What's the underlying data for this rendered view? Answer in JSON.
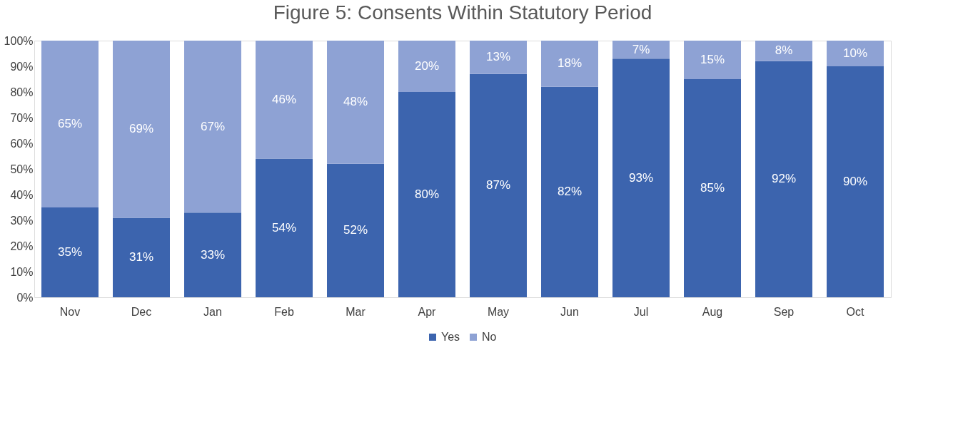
{
  "chart_data": {
    "type": "bar",
    "title": "Figure 5: Consents Within Statutory Period",
    "categories": [
      "Nov",
      "Dec",
      "Jan",
      "Feb",
      "Mar",
      "Apr",
      "May",
      "Jun",
      "Jul",
      "Aug",
      "Sep",
      "Oct"
    ],
    "stacked": true,
    "series": [
      {
        "name": "Yes",
        "color": "#3c64ae",
        "values": [
          35,
          31,
          33,
          54,
          52,
          80,
          87,
          82,
          93,
          85,
          92,
          90
        ],
        "value_labels": [
          "35%",
          "31%",
          "33%",
          "54%",
          "52%",
          "80%",
          "87%",
          "82%",
          "93%",
          "85%",
          "92%",
          "90%"
        ]
      },
      {
        "name": "No",
        "color": "#8ea2d4",
        "values": [
          65,
          69,
          67,
          46,
          48,
          20,
          13,
          18,
          7,
          15,
          8,
          10
        ],
        "value_labels": [
          "65%",
          "69%",
          "67%",
          "46%",
          "48%",
          "20%",
          "13%",
          "18%",
          "7%",
          "15%",
          "8%",
          "10%"
        ]
      }
    ],
    "ylim": [
      0,
      100
    ],
    "yticks": [
      {
        "value": 0,
        "label": "0%"
      },
      {
        "value": 10,
        "label": "10%"
      },
      {
        "value": 20,
        "label": "20%"
      },
      {
        "value": 30,
        "label": "30%"
      },
      {
        "value": 40,
        "label": "40%"
      },
      {
        "value": 50,
        "label": "50%"
      },
      {
        "value": 60,
        "label": "60%"
      },
      {
        "value": 70,
        "label": "70%"
      },
      {
        "value": 80,
        "label": "80%"
      },
      {
        "value": 90,
        "label": "90%"
      },
      {
        "value": 100,
        "label": "100%"
      }
    ],
    "grid": false,
    "legend": "bottom"
  }
}
